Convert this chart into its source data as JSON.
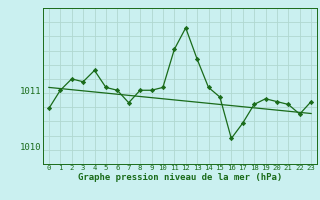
{
  "xlabel": "Graphe pression niveau de la mer (hPa)",
  "bg_color": "#caf0f0",
  "grid_color_v": "#b0d8d0",
  "grid_color_h": "#b0d8d0",
  "line_color": "#1a6b1a",
  "hours": [
    0,
    1,
    2,
    3,
    4,
    5,
    6,
    7,
    8,
    9,
    10,
    11,
    12,
    13,
    14,
    15,
    16,
    17,
    18,
    19,
    20,
    21,
    22,
    23
  ],
  "pressure": [
    1010.68,
    1011.0,
    1011.2,
    1011.15,
    1011.35,
    1011.05,
    1011.0,
    1010.78,
    1011.0,
    1011.0,
    1011.05,
    1011.72,
    1012.1,
    1011.55,
    1011.05,
    1010.88,
    1010.15,
    1010.42,
    1010.75,
    1010.85,
    1010.8,
    1010.75,
    1010.58,
    1010.8
  ],
  "trend": [
    1011.05,
    1011.03,
    1011.01,
    1010.99,
    1010.97,
    1010.95,
    1010.93,
    1010.91,
    1010.89,
    1010.87,
    1010.85,
    1010.83,
    1010.81,
    1010.79,
    1010.77,
    1010.75,
    1010.73,
    1010.71,
    1010.69,
    1010.67,
    1010.65,
    1010.63,
    1010.61,
    1010.59
  ],
  "ylim_min": 1009.7,
  "ylim_max": 1012.45,
  "ytick_vals": [
    1010,
    1011
  ],
  "ytick_labels": [
    "1010",
    "1011"
  ],
  "xlabel_fontsize": 6.5,
  "ytick_fontsize": 6.5,
  "xtick_fontsize": 5.2
}
